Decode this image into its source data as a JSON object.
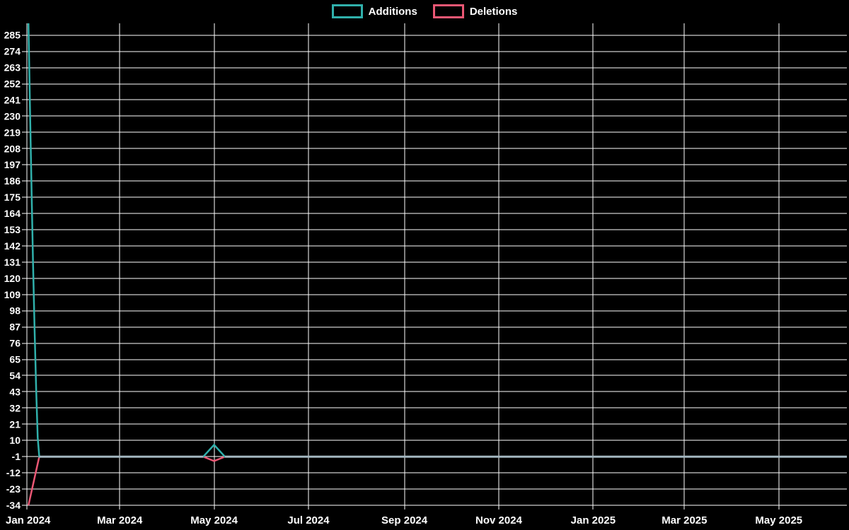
{
  "legend": {
    "items": [
      {
        "label": "Additions",
        "color": "#30b0ab"
      },
      {
        "label": "Deletions",
        "color": "#ea5774"
      }
    ]
  },
  "chart_data": {
    "type": "line",
    "title": "",
    "xlabel": "",
    "ylabel": "",
    "background": "#000000",
    "grid": true,
    "grid_color": "#ffffff",
    "text_color": "#ffffff",
    "overlap_color": "#a3b6bf",
    "legend_position": "top-center",
    "x_domain": [
      "2024-01-01",
      "2025-06-14"
    ],
    "ylim": [
      -34,
      293
    ],
    "y_ticks": [
      285,
      274,
      263,
      252,
      241,
      230,
      219,
      208,
      197,
      186,
      175,
      164,
      153,
      142,
      131,
      120,
      109,
      98,
      87,
      76,
      65,
      54,
      43,
      32,
      21,
      10,
      -1,
      -12,
      -23,
      -34
    ],
    "x_ticks": [
      {
        "label": "Jan 2024",
        "date": "2024-01-01"
      },
      {
        "label": "Mar 2024",
        "date": "2024-03-01"
      },
      {
        "label": "May 2024",
        "date": "2024-05-01"
      },
      {
        "label": "Jul 2024",
        "date": "2024-07-01"
      },
      {
        "label": "Sep 2024",
        "date": "2024-09-01"
      },
      {
        "label": "Nov 2024",
        "date": "2024-11-01"
      },
      {
        "label": "Jan 2025",
        "date": "2025-01-01"
      },
      {
        "label": "Mar 2025",
        "date": "2025-03-01"
      },
      {
        "label": "May 2025",
        "date": "2025-05-01"
      }
    ],
    "series": [
      {
        "name": "Additions",
        "color": "#30b0ab",
        "points": [
          [
            "2024-01-02",
            293
          ],
          [
            "2024-01-03",
            235
          ],
          [
            "2024-01-04",
            180
          ],
          [
            "2024-01-05",
            130
          ],
          [
            "2024-01-06",
            85
          ],
          [
            "2024-01-07",
            45
          ],
          [
            "2024-01-08",
            12
          ],
          [
            "2024-01-09",
            -1
          ],
          [
            "2024-04-24",
            -1
          ],
          [
            "2024-05-01",
            7
          ],
          [
            "2024-05-08",
            -1
          ],
          [
            "2025-06-14",
            -1
          ]
        ]
      },
      {
        "name": "Deletions",
        "color": "#ea5774",
        "points": [
          [
            "2024-01-02",
            -34
          ],
          [
            "2024-01-09",
            -1
          ],
          [
            "2024-04-24",
            -1
          ],
          [
            "2024-05-01",
            -4
          ],
          [
            "2024-05-08",
            -1
          ],
          [
            "2025-06-14",
            -1
          ]
        ]
      }
    ]
  }
}
